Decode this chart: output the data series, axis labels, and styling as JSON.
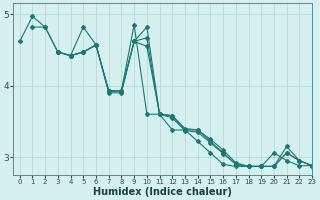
{
  "title": "",
  "xlabel": "Humidex (Indice chaleur)",
  "ylabel": "",
  "xlim": [
    -0.5,
    23
  ],
  "ylim": [
    2.75,
    5.15
  ],
  "bg_color": "#d6efef",
  "grid_color": "#b8d8d8",
  "line_color": "#1a7a70",
  "series": [
    {
      "x": [
        0,
        1,
        2,
        3,
        4,
        5,
        6,
        7,
        8,
        9,
        10,
        11,
        12,
        13,
        14,
        15,
        16,
        17,
        18,
        19,
        20,
        21,
        22,
        23
      ],
      "y": [
        4.62,
        4.97,
        4.82,
        4.47,
        4.42,
        4.82,
        4.57,
        3.92,
        3.93,
        4.85,
        3.6,
        3.6,
        3.38,
        3.38,
        3.22,
        3.06,
        2.9,
        2.87,
        2.87,
        2.87,
        3.06,
        2.95,
        2.88,
        2.88
      ]
    },
    {
      "x": [
        1,
        2,
        3,
        4,
        5,
        6,
        7,
        8,
        9,
        10,
        11,
        12,
        13,
        14,
        15,
        16,
        17,
        18,
        19,
        20,
        21,
        22,
        23
      ],
      "y": [
        4.82,
        4.82,
        4.47,
        4.42,
        4.47,
        4.57,
        3.92,
        3.93,
        4.62,
        4.82,
        3.6,
        3.58,
        3.38,
        3.38,
        3.22,
        3.06,
        2.9,
        2.87,
        2.87,
        2.87,
        3.06,
        2.95,
        2.88
      ]
    },
    {
      "x": [
        3,
        4,
        5,
        6,
        7,
        8,
        9,
        10,
        11,
        12,
        13,
        14,
        15,
        16,
        17,
        18,
        19,
        20,
        21,
        22,
        23
      ],
      "y": [
        4.47,
        4.42,
        4.47,
        4.57,
        3.93,
        3.93,
        4.62,
        4.67,
        3.6,
        3.58,
        3.4,
        3.38,
        3.25,
        3.1,
        2.92,
        2.87,
        2.87,
        2.87,
        3.06,
        2.95,
        2.88
      ]
    },
    {
      "x": [
        3,
        4,
        5,
        6,
        7,
        8,
        9,
        10,
        11,
        12,
        13,
        14,
        15,
        16,
        17,
        18,
        19,
        20,
        21,
        22,
        23
      ],
      "y": [
        4.47,
        4.42,
        4.47,
        4.57,
        3.9,
        3.9,
        4.62,
        4.55,
        3.6,
        3.55,
        3.37,
        3.35,
        3.2,
        3.05,
        2.9,
        2.87,
        2.87,
        2.87,
        3.15,
        2.95,
        2.88
      ]
    }
  ],
  "xticks": [
    0,
    1,
    2,
    3,
    4,
    5,
    6,
    7,
    8,
    9,
    10,
    11,
    12,
    13,
    14,
    15,
    16,
    17,
    18,
    19,
    20,
    21,
    22,
    23
  ],
  "yticks": [
    3,
    4,
    5
  ]
}
